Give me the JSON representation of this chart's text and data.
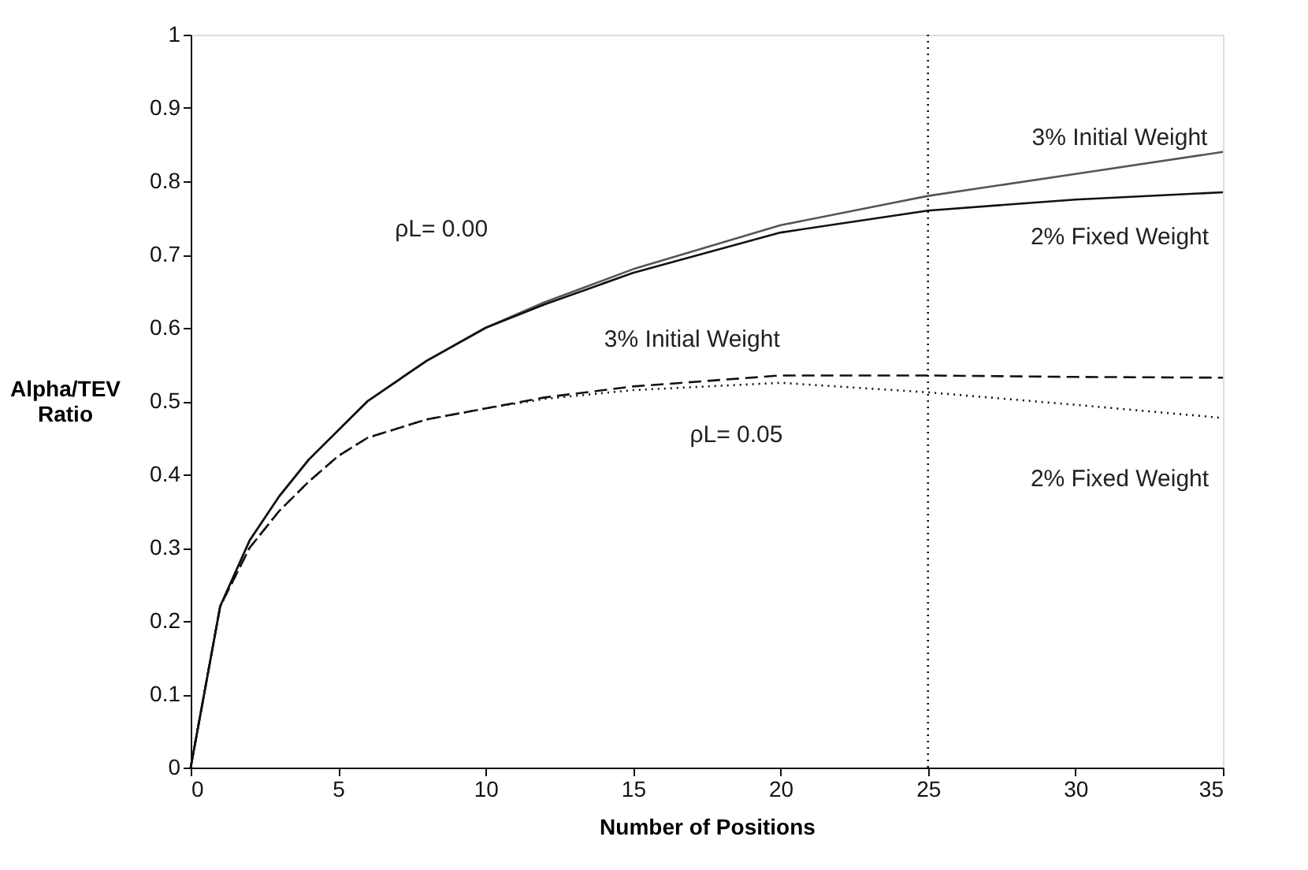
{
  "chart_data": {
    "type": "line",
    "xlabel": "Number of Positions",
    "ylabel": "Alpha/TEV Ratio",
    "xlim": [
      0,
      35
    ],
    "xticks": [
      0,
      5,
      10,
      15,
      20,
      25,
      30,
      35
    ],
    "ylim": [
      0,
      1
    ],
    "yticks": [
      0,
      0.1,
      0.2,
      0.3,
      0.4,
      0.5,
      0.6,
      0.7,
      0.8,
      0.9,
      1
    ],
    "grid": false,
    "marker": "none",
    "series": [
      {
        "color": "#555555",
        "line_style": "solid",
        "x": [
          0,
          1,
          2,
          3,
          4,
          5,
          6,
          8,
          10,
          12,
          15,
          20,
          25,
          30,
          35
        ],
        "values": [
          0,
          0.22,
          0.31,
          0.37,
          0.42,
          0.46,
          0.5,
          0.555,
          0.6,
          0.635,
          0.68,
          0.74,
          0.78,
          0.81,
          0.84
        ]
      },
      {
        "color": "#111111",
        "line_style": "solid",
        "x": [
          0,
          1,
          2,
          3,
          4,
          5,
          6,
          8,
          10,
          12,
          15,
          20,
          25,
          30,
          35
        ],
        "values": [
          0,
          0.22,
          0.31,
          0.37,
          0.42,
          0.46,
          0.5,
          0.555,
          0.6,
          0.632,
          0.675,
          0.73,
          0.76,
          0.775,
          0.785
        ]
      },
      {
        "color": "#111111",
        "line_style": "dashed",
        "x": [
          0,
          1,
          2,
          3,
          4,
          5,
          6,
          8,
          10,
          12,
          15,
          20,
          25,
          30,
          35
        ],
        "values": [
          0,
          0.22,
          0.3,
          0.35,
          0.39,
          0.425,
          0.45,
          0.475,
          0.49,
          0.505,
          0.52,
          0.535,
          0.535,
          0.533,
          0.532
        ]
      },
      {
        "color": "#111111",
        "line_style": "dotted",
        "x": [
          0,
          1,
          2,
          3,
          4,
          5,
          6,
          8,
          10,
          12,
          15,
          20,
          25,
          30,
          35
        ],
        "values": [
          0,
          0.22,
          0.3,
          0.35,
          0.39,
          0.425,
          0.45,
          0.475,
          0.49,
          0.503,
          0.515,
          0.525,
          0.512,
          0.495,
          0.477
        ]
      }
    ],
    "ref_lines": [
      {
        "axis": "x",
        "value": 25,
        "label": null,
        "color": "#111111",
        "line_style": "dotted"
      }
    ],
    "annotations": [
      "3% Initial Weight",
      "2% Fixed Weight",
      "3% Initial Weight",
      "2% Fixed Weight",
      "ρL= 0.00",
      "ρL= 0.05"
    ]
  }
}
